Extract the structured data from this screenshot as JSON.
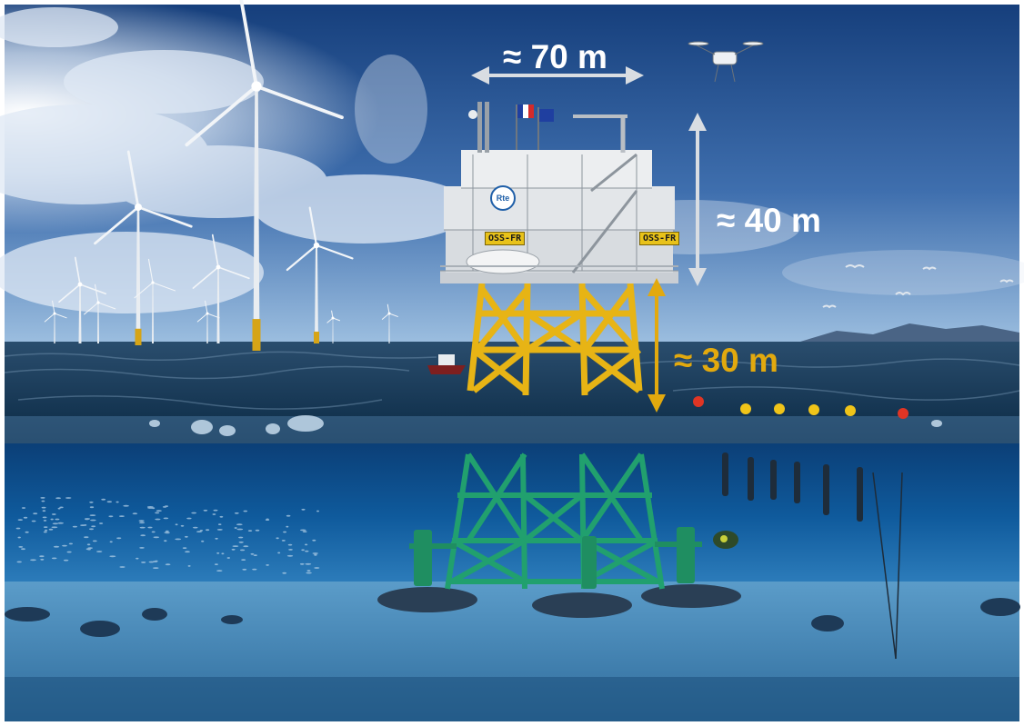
{
  "annotations": {
    "width_label": "≈ 70 m",
    "height_label": "≈ 40 m",
    "clearance_label": "≈ 30 m"
  },
  "platform": {
    "sign_left": "OSS-FR",
    "sign_right": "OSS-FR",
    "logo_text": "Rte"
  },
  "colors": {
    "sky_top": "#1d4f93",
    "sky_bottom": "#8fb4d9",
    "sea_surface": "#0d3552",
    "underwater": "#0b4f8c",
    "seabed": "#4d8fbf",
    "jacket_above": "#e7b415",
    "jacket_below": "#1f9a6a",
    "annotation_white": "#ffffff",
    "annotation_gold": "#e2a90e"
  }
}
